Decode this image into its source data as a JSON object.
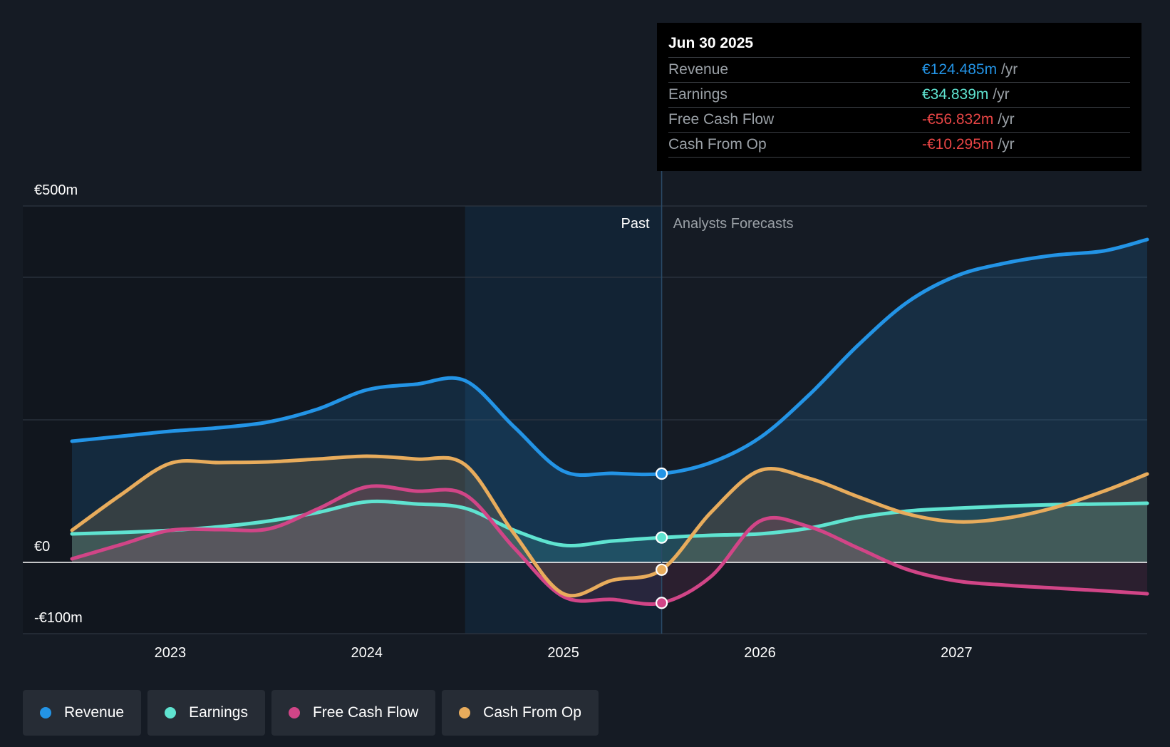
{
  "chart_data": {
    "type": "line",
    "title": "",
    "ylim": [
      -100,
      500
    ],
    "y_tick_labels": [
      {
        "value": 500,
        "label": "€500m"
      },
      {
        "value": 0,
        "label": "€0"
      },
      {
        "value": -100,
        "label": "-€100m"
      }
    ],
    "x_tick_labels": [
      {
        "value": 2023.0,
        "label": "2023"
      },
      {
        "value": 2024.0,
        "label": "2024"
      },
      {
        "value": 2025.0,
        "label": "2025"
      },
      {
        "value": 2026.0,
        "label": "2026"
      },
      {
        "value": 2027.0,
        "label": "2027"
      }
    ],
    "xlim": [
      2022.25,
      2027.97
    ],
    "past_region_start": 2024.5,
    "divider_x": 2025.5,
    "past_label": "Past",
    "forecast_label": "Analysts Forecasts",
    "series": [
      {
        "name": "Revenue",
        "color": "#2394e6",
        "points": [
          [
            2022.5,
            170
          ],
          [
            2022.75,
            177
          ],
          [
            2023.0,
            184
          ],
          [
            2023.25,
            189
          ],
          [
            2023.5,
            197
          ],
          [
            2023.75,
            215
          ],
          [
            2024.0,
            242
          ],
          [
            2024.25,
            250
          ],
          [
            2024.5,
            255
          ],
          [
            2024.75,
            190
          ],
          [
            2025.0,
            128
          ],
          [
            2025.25,
            125
          ],
          [
            2025.5,
            124.485
          ],
          [
            2025.75,
            140
          ],
          [
            2026.0,
            175
          ],
          [
            2026.25,
            235
          ],
          [
            2026.5,
            305
          ],
          [
            2026.75,
            365
          ],
          [
            2027.0,
            402
          ],
          [
            2027.25,
            420
          ],
          [
            2027.5,
            431
          ],
          [
            2027.75,
            437
          ],
          [
            2027.97,
            453
          ]
        ]
      },
      {
        "name": "Earnings",
        "color": "#5fe3d0",
        "points": [
          [
            2022.5,
            40
          ],
          [
            2022.75,
            42
          ],
          [
            2023.0,
            45
          ],
          [
            2023.25,
            50
          ],
          [
            2023.5,
            58
          ],
          [
            2023.75,
            70
          ],
          [
            2024.0,
            85
          ],
          [
            2024.25,
            82
          ],
          [
            2024.5,
            76
          ],
          [
            2024.75,
            45
          ],
          [
            2025.0,
            24
          ],
          [
            2025.25,
            30
          ],
          [
            2025.5,
            34.839
          ],
          [
            2025.75,
            38
          ],
          [
            2026.0,
            40
          ],
          [
            2026.25,
            48
          ],
          [
            2026.5,
            63
          ],
          [
            2026.75,
            72
          ],
          [
            2027.0,
            76
          ],
          [
            2027.25,
            79
          ],
          [
            2027.5,
            81
          ],
          [
            2027.75,
            82
          ],
          [
            2027.97,
            83
          ]
        ]
      },
      {
        "name": "Free Cash Flow",
        "color": "#d14587",
        "points": [
          [
            2022.5,
            5
          ],
          [
            2022.75,
            25
          ],
          [
            2023.0,
            45
          ],
          [
            2023.25,
            46
          ],
          [
            2023.5,
            47
          ],
          [
            2023.75,
            75
          ],
          [
            2024.0,
            106
          ],
          [
            2024.25,
            100
          ],
          [
            2024.5,
            95
          ],
          [
            2024.75,
            20
          ],
          [
            2025.0,
            -48
          ],
          [
            2025.25,
            -52
          ],
          [
            2025.5,
            -56.832
          ],
          [
            2025.75,
            -20
          ],
          [
            2026.0,
            58
          ],
          [
            2026.25,
            50
          ],
          [
            2026.5,
            20
          ],
          [
            2026.75,
            -10
          ],
          [
            2027.0,
            -26
          ],
          [
            2027.25,
            -32
          ],
          [
            2027.5,
            -36
          ],
          [
            2027.75,
            -40
          ],
          [
            2027.97,
            -44
          ]
        ]
      },
      {
        "name": "Cash From Op",
        "color": "#e8ac5c",
        "points": [
          [
            2022.5,
            45
          ],
          [
            2022.75,
            95
          ],
          [
            2023.0,
            139
          ],
          [
            2023.25,
            140
          ],
          [
            2023.5,
            141
          ],
          [
            2023.75,
            145
          ],
          [
            2024.0,
            149
          ],
          [
            2024.25,
            145
          ],
          [
            2024.5,
            137
          ],
          [
            2024.75,
            40
          ],
          [
            2025.0,
            -44
          ],
          [
            2025.25,
            -25
          ],
          [
            2025.5,
            -10.295
          ],
          [
            2025.75,
            70
          ],
          [
            2026.0,
            129
          ],
          [
            2026.25,
            118
          ],
          [
            2026.5,
            92
          ],
          [
            2026.75,
            68
          ],
          [
            2027.0,
            57
          ],
          [
            2027.25,
            62
          ],
          [
            2027.5,
            77
          ],
          [
            2027.75,
            100
          ],
          [
            2027.97,
            124
          ]
        ]
      }
    ]
  },
  "tooltip": {
    "date": "Jun 30 2025",
    "rows": [
      {
        "name": "Revenue",
        "value": "€124.485m",
        "unit": "/yr",
        "color": "#2394e6"
      },
      {
        "name": "Earnings",
        "value": "€34.839m",
        "unit": "/yr",
        "color": "#5fe3d0"
      },
      {
        "name": "Free Cash Flow",
        "value": "-€56.832m",
        "unit": "/yr",
        "color": "#e84545"
      },
      {
        "name": "Cash From Op",
        "value": "-€10.295m",
        "unit": "/yr",
        "color": "#e84545"
      }
    ]
  },
  "legend": [
    {
      "label": "Revenue",
      "color": "#2394e6"
    },
    {
      "label": "Earnings",
      "color": "#5fe3d0"
    },
    {
      "label": "Free Cash Flow",
      "color": "#d14587"
    },
    {
      "label": "Cash From Op",
      "color": "#e8ac5c"
    }
  ]
}
